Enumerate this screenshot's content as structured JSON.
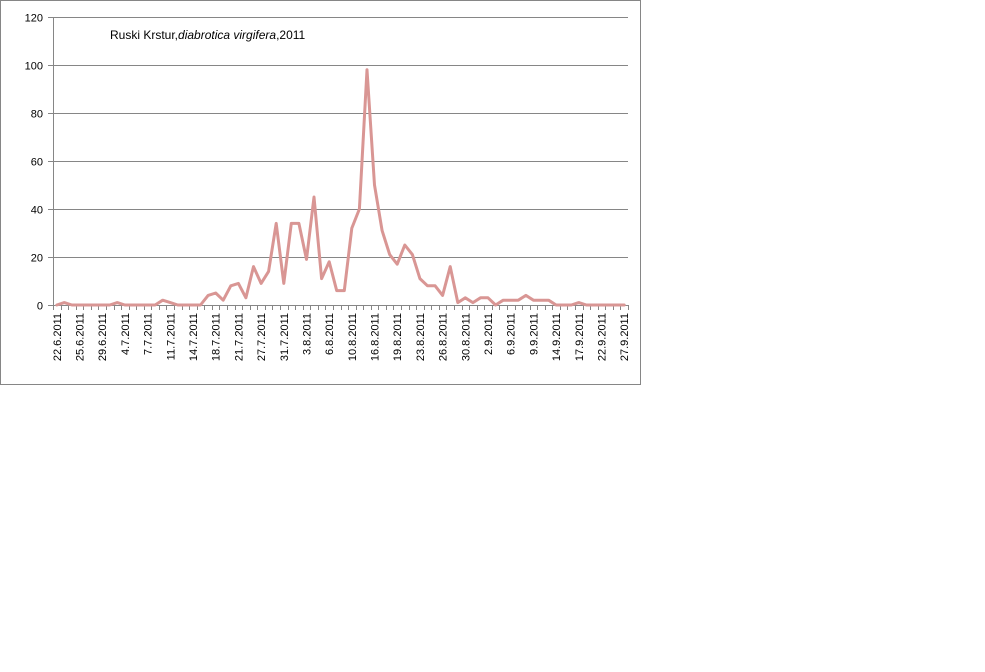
{
  "chart_data": {
    "type": "line",
    "title": "Ruski Krstur,",
    "title_italic": "diabrotica virgifera",
    "title_suffix": ",2011",
    "xlabel": "",
    "ylabel": "",
    "ylim": [
      0,
      120
    ],
    "yticks": [
      0,
      20,
      40,
      60,
      80,
      100,
      120
    ],
    "grid": true,
    "x_tick_labels": [
      "22.6.2011",
      "25.6.2011",
      "29.6.2011",
      "4.7.2011",
      "7.7.2011",
      "11.7.2011",
      "14.7.2011",
      "18.7.2011",
      "21.7.2011",
      "27.7.2011",
      "31.7.2011",
      "3.8.2011",
      "6.8.2011",
      "10.8.2011",
      "16.8.2011",
      "19.8.2011",
      "23.8.2011",
      "26.8.2011",
      "30.8.2011",
      "2.9.2011",
      "6.9.2011",
      "9.9.2011",
      "14.9.2011",
      "17.9.2011",
      "22.9.2011",
      "27.9.2011"
    ],
    "series": [
      {
        "color": "#d99694",
        "values": [
          0,
          1,
          0,
          0,
          0,
          0,
          0,
          0,
          1,
          0,
          0,
          0,
          0,
          0,
          2,
          1,
          0,
          0,
          0,
          0,
          4,
          5,
          2,
          8,
          9,
          3,
          16,
          9,
          14,
          34,
          9,
          34,
          34,
          19,
          45,
          11,
          18,
          6,
          6,
          32,
          40,
          98,
          50,
          31,
          21,
          17,
          25,
          21,
          11,
          8,
          8,
          4,
          16,
          1,
          3,
          1,
          3,
          3,
          0,
          2,
          2,
          2,
          4,
          2,
          2,
          2,
          0,
          0,
          0,
          1,
          0,
          0,
          0,
          0,
          0,
          0
        ]
      }
    ]
  }
}
